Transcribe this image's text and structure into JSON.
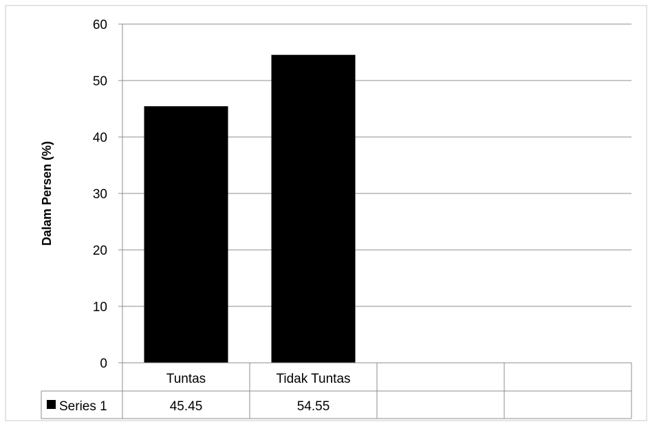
{
  "chart_data": {
    "type": "bar",
    "title": "",
    "xlabel": "",
    "ylabel": "Dalam Persen (%)",
    "ylim": [
      0,
      60
    ],
    "yticks": [
      0,
      10,
      20,
      30,
      40,
      50,
      60
    ],
    "grid": true,
    "categories": [
      "Tuntas",
      "Tidak Tuntas",
      "",
      ""
    ],
    "series": [
      {
        "name": "Series 1",
        "values": [
          45.45,
          54.55,
          null,
          null
        ],
        "labels": [
          "45.45",
          "54.55",
          "",
          ""
        ],
        "color": "#000000"
      }
    ],
    "legend": "data-table"
  }
}
